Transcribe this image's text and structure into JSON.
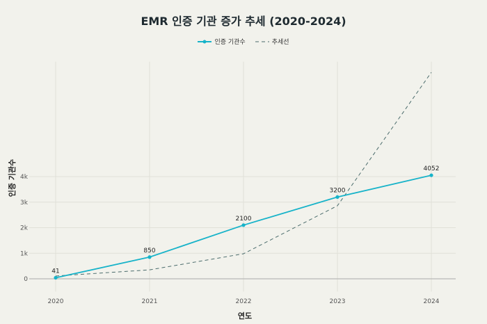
{
  "chart_data": {
    "type": "line",
    "title": "EMR 인증 기관 증가 추세 (2020-2024)",
    "xlabel": "연도",
    "ylabel": "인증 기관수",
    "x": [
      2020,
      2021,
      2022,
      2023,
      2024
    ],
    "yticks": [
      0,
      1000,
      2000,
      3000,
      4000
    ],
    "ytick_labels": [
      "0",
      "1k",
      "2k",
      "3k",
      "4k"
    ],
    "ylim": [
      -500,
      8500
    ],
    "grid": true,
    "legend_position": "top-center",
    "series": [
      {
        "name": "인증 기관수",
        "values": [
          41,
          850,
          2100,
          3200,
          4052
        ],
        "data_labels": [
          "41",
          "850",
          "2100",
          "3200",
          "4052"
        ],
        "color": "#17b3c9",
        "style": "solid-markers"
      },
      {
        "name": "추세선",
        "values": [
          110,
          350,
          980,
          2860,
          8080
        ],
        "color": "#4a6b6b",
        "style": "dashed"
      }
    ]
  }
}
